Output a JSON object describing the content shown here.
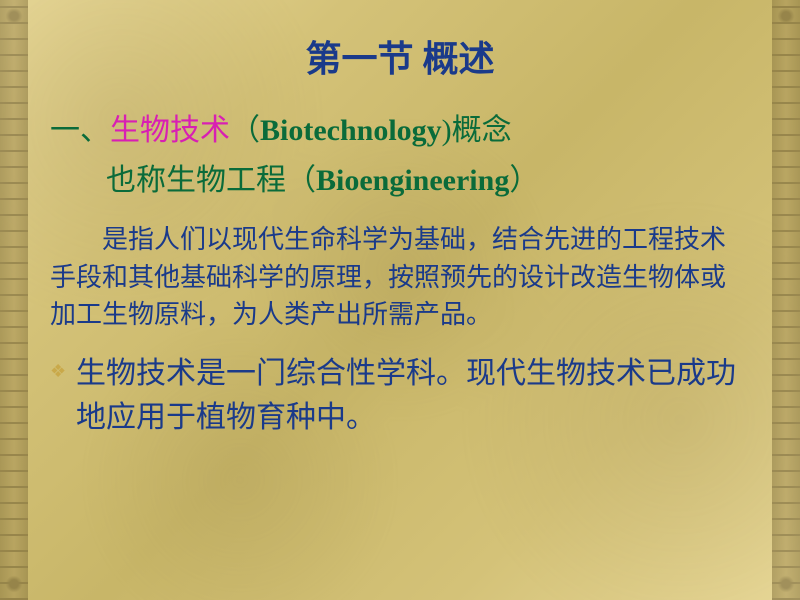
{
  "colors": {
    "title": "#1a3a8a",
    "heading_green": "#0a6b3a",
    "highlight_pink": "#d81fb3",
    "body_blue": "#1a3a8a",
    "bullet_gold": "#c9a94a",
    "background_base": "#d4c278"
  },
  "typography": {
    "title_fontsize": 36,
    "heading_fontsize": 30,
    "body_fontsize": 26,
    "bullet_fontsize": 30,
    "font_family_cjk": "KaiTi",
    "font_family_latin": "Times New Roman"
  },
  "title": "第一节   概述",
  "heading": {
    "prefix": "一、",
    "highlight": "生物技术",
    "rest_before_en": "（",
    "en": "Biotechnology",
    "rest_after_en": ")概念"
  },
  "subheading": {
    "text_before_en": "也称生物工程（",
    "en": "Bioengineering",
    "text_after_en": "）"
  },
  "body": "是指人们以现代生命科学为基础，结合先进的工程技术手段和其他基础科学的原理，按照预先的设计改造生物体或加工生物原料，为人类产出所需产品。",
  "bullet": "生物技术是一门综合性学科。现代生物技术已成功地应用于植物育种中。"
}
